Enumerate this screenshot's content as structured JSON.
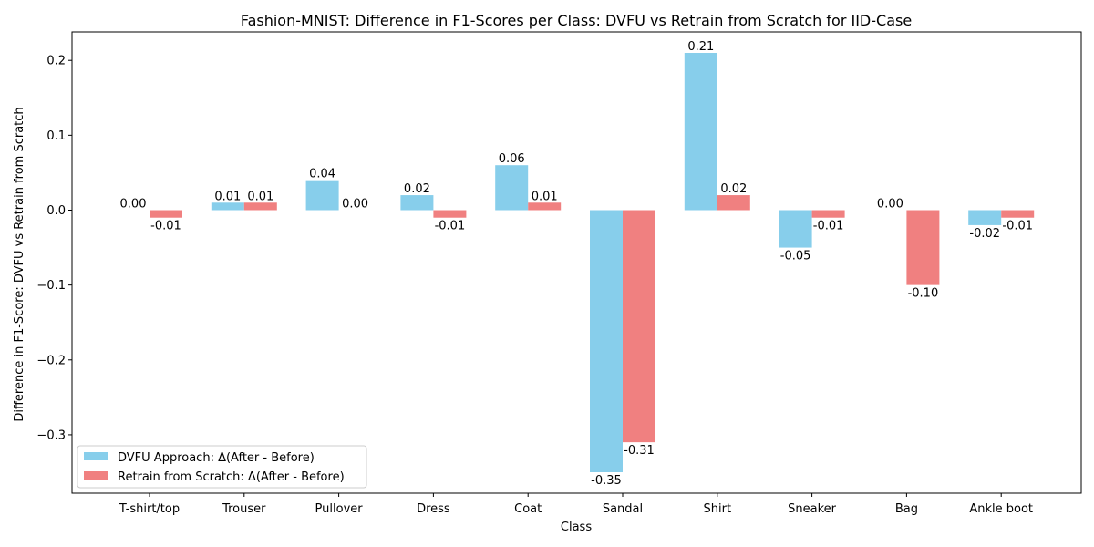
{
  "chart_data": {
    "type": "bar",
    "title": "Fashion-MNIST: Difference in F1-Scores per Class: DVFU vs Retrain from Scratch for IID-Case",
    "xlabel": "Class",
    "ylabel": "Difference in F1-Score: DVFU vs Retrain from Scratch",
    "categories": [
      "T-shirt/top",
      "Trouser",
      "Pullover",
      "Dress",
      "Coat",
      "Sandal",
      "Shirt",
      "Sneaker",
      "Bag",
      "Ankle boot"
    ],
    "series": [
      {
        "name": "DVFU Approach: Δ(After - Before)",
        "color": "#87ceeb",
        "values": [
          0.0,
          0.01,
          0.04,
          0.02,
          0.06,
          -0.35,
          0.21,
          -0.05,
          0.0,
          -0.02
        ],
        "labels": [
          "0.00",
          "0.01",
          "0.04",
          "0.02",
          "0.06",
          "-0.35",
          "0.21",
          "-0.05",
          "0.00",
          "-0.02"
        ]
      },
      {
        "name": "Retrain from Scratch: Δ(After - Before)",
        "color": "#f08080",
        "values": [
          -0.01,
          0.01,
          0.0,
          -0.01,
          0.01,
          -0.31,
          0.02,
          -0.01,
          -0.1,
          -0.01
        ],
        "labels": [
          "-0.01",
          "0.01",
          "0.00",
          "-0.01",
          "0.01",
          "-0.31",
          "0.02",
          "-0.01",
          "-0.10",
          "-0.01"
        ]
      }
    ],
    "ylim": [
      -0.378,
      0.238
    ],
    "yticks": [
      0.2,
      0.1,
      0.0,
      -0.1,
      -0.2,
      -0.3
    ],
    "ytick_labels": [
      "0.2",
      "0.1",
      "0.0",
      "−0.1",
      "−0.2",
      "−0.3"
    ],
    "grid": false,
    "legend_position": "lower left"
  }
}
